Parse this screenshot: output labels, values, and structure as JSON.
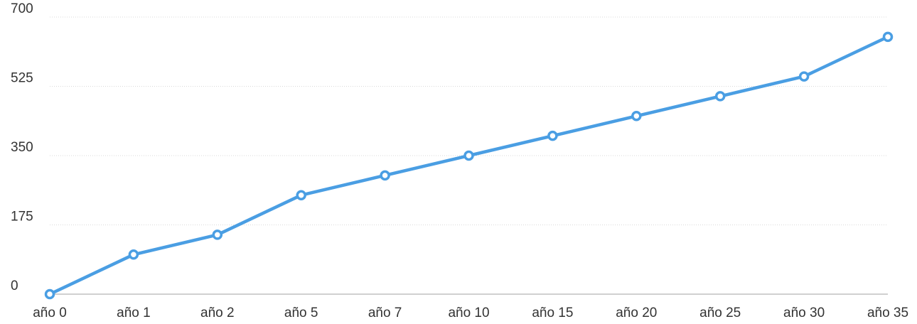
{
  "chart_data": {
    "type": "line",
    "title": "",
    "xlabel": "",
    "ylabel": "",
    "categories": [
      "año 0",
      "año 1",
      "año 2",
      "año 5",
      "año 7",
      "año 10",
      "año 15",
      "año 20",
      "año 25",
      "año 30",
      "año 35"
    ],
    "series": [
      {
        "values": [
          0,
          100,
          150,
          250,
          300,
          350,
          400,
          450,
          500,
          550,
          650
        ],
        "color": "#4a9ee3"
      }
    ],
    "ylim": [
      0,
      700
    ],
    "yticks": [
      "0",
      "175",
      "350",
      "525",
      "700"
    ],
    "grid": true,
    "legend": "none"
  }
}
